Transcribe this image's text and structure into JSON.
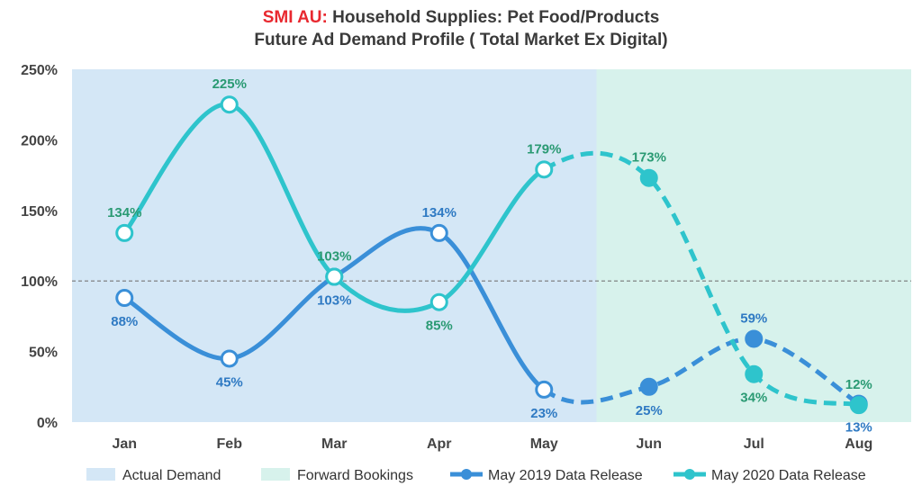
{
  "title": {
    "brand": "SMI AU:",
    "line1_rest": " Household Supplies: Pet Food/Products",
    "line2": "Future Ad Demand Profile ( Total Market Ex Digital)"
  },
  "colors": {
    "actual_band": "#d4e7f6",
    "forward_band": "#d7f2ec",
    "series_2019": "#3a8fd8",
    "series_2020": "#2ec4cc",
    "label_2019": "#2f7ac3",
    "label_2020": "#2a9a73",
    "reference_line": "#777777"
  },
  "chart_data": {
    "type": "line",
    "categories": [
      "Jan",
      "Feb",
      "Mar",
      "Apr",
      "May",
      "Jun",
      "Jul",
      "Aug"
    ],
    "ylim": [
      0,
      250
    ],
    "yticks": [
      0,
      50,
      100,
      150,
      200,
      250
    ],
    "ytick_labels": [
      "0%",
      "50%",
      "100%",
      "150%",
      "200%",
      "250%"
    ],
    "reference_line": 100,
    "bands": [
      {
        "name": "Actual Demand",
        "from": "Jan",
        "to": "May"
      },
      {
        "name": "Forward Bookings",
        "from": "Jun",
        "to": "Aug"
      }
    ],
    "series": [
      {
        "name": "May 2019 Data Release",
        "values": [
          88,
          45,
          103,
          134,
          23,
          25,
          59,
          13
        ],
        "labels": [
          "88%",
          "45%",
          "103%",
          "134%",
          "23%",
          "25%",
          "59%",
          "13%"
        ],
        "actual_until": "May"
      },
      {
        "name": "May 2020 Data Release",
        "values": [
          134,
          225,
          103,
          85,
          179,
          173,
          34,
          12
        ],
        "labels": [
          "134%",
          "225%",
          "103%",
          "85%",
          "179%",
          "173%",
          "34%",
          "12%"
        ],
        "actual_until": "May"
      }
    ],
    "legend": [
      "Actual Demand",
      "Forward Bookings",
      "May 2019 Data Release",
      "May 2020 Data Release"
    ],
    "legend_position": "bottom"
  }
}
